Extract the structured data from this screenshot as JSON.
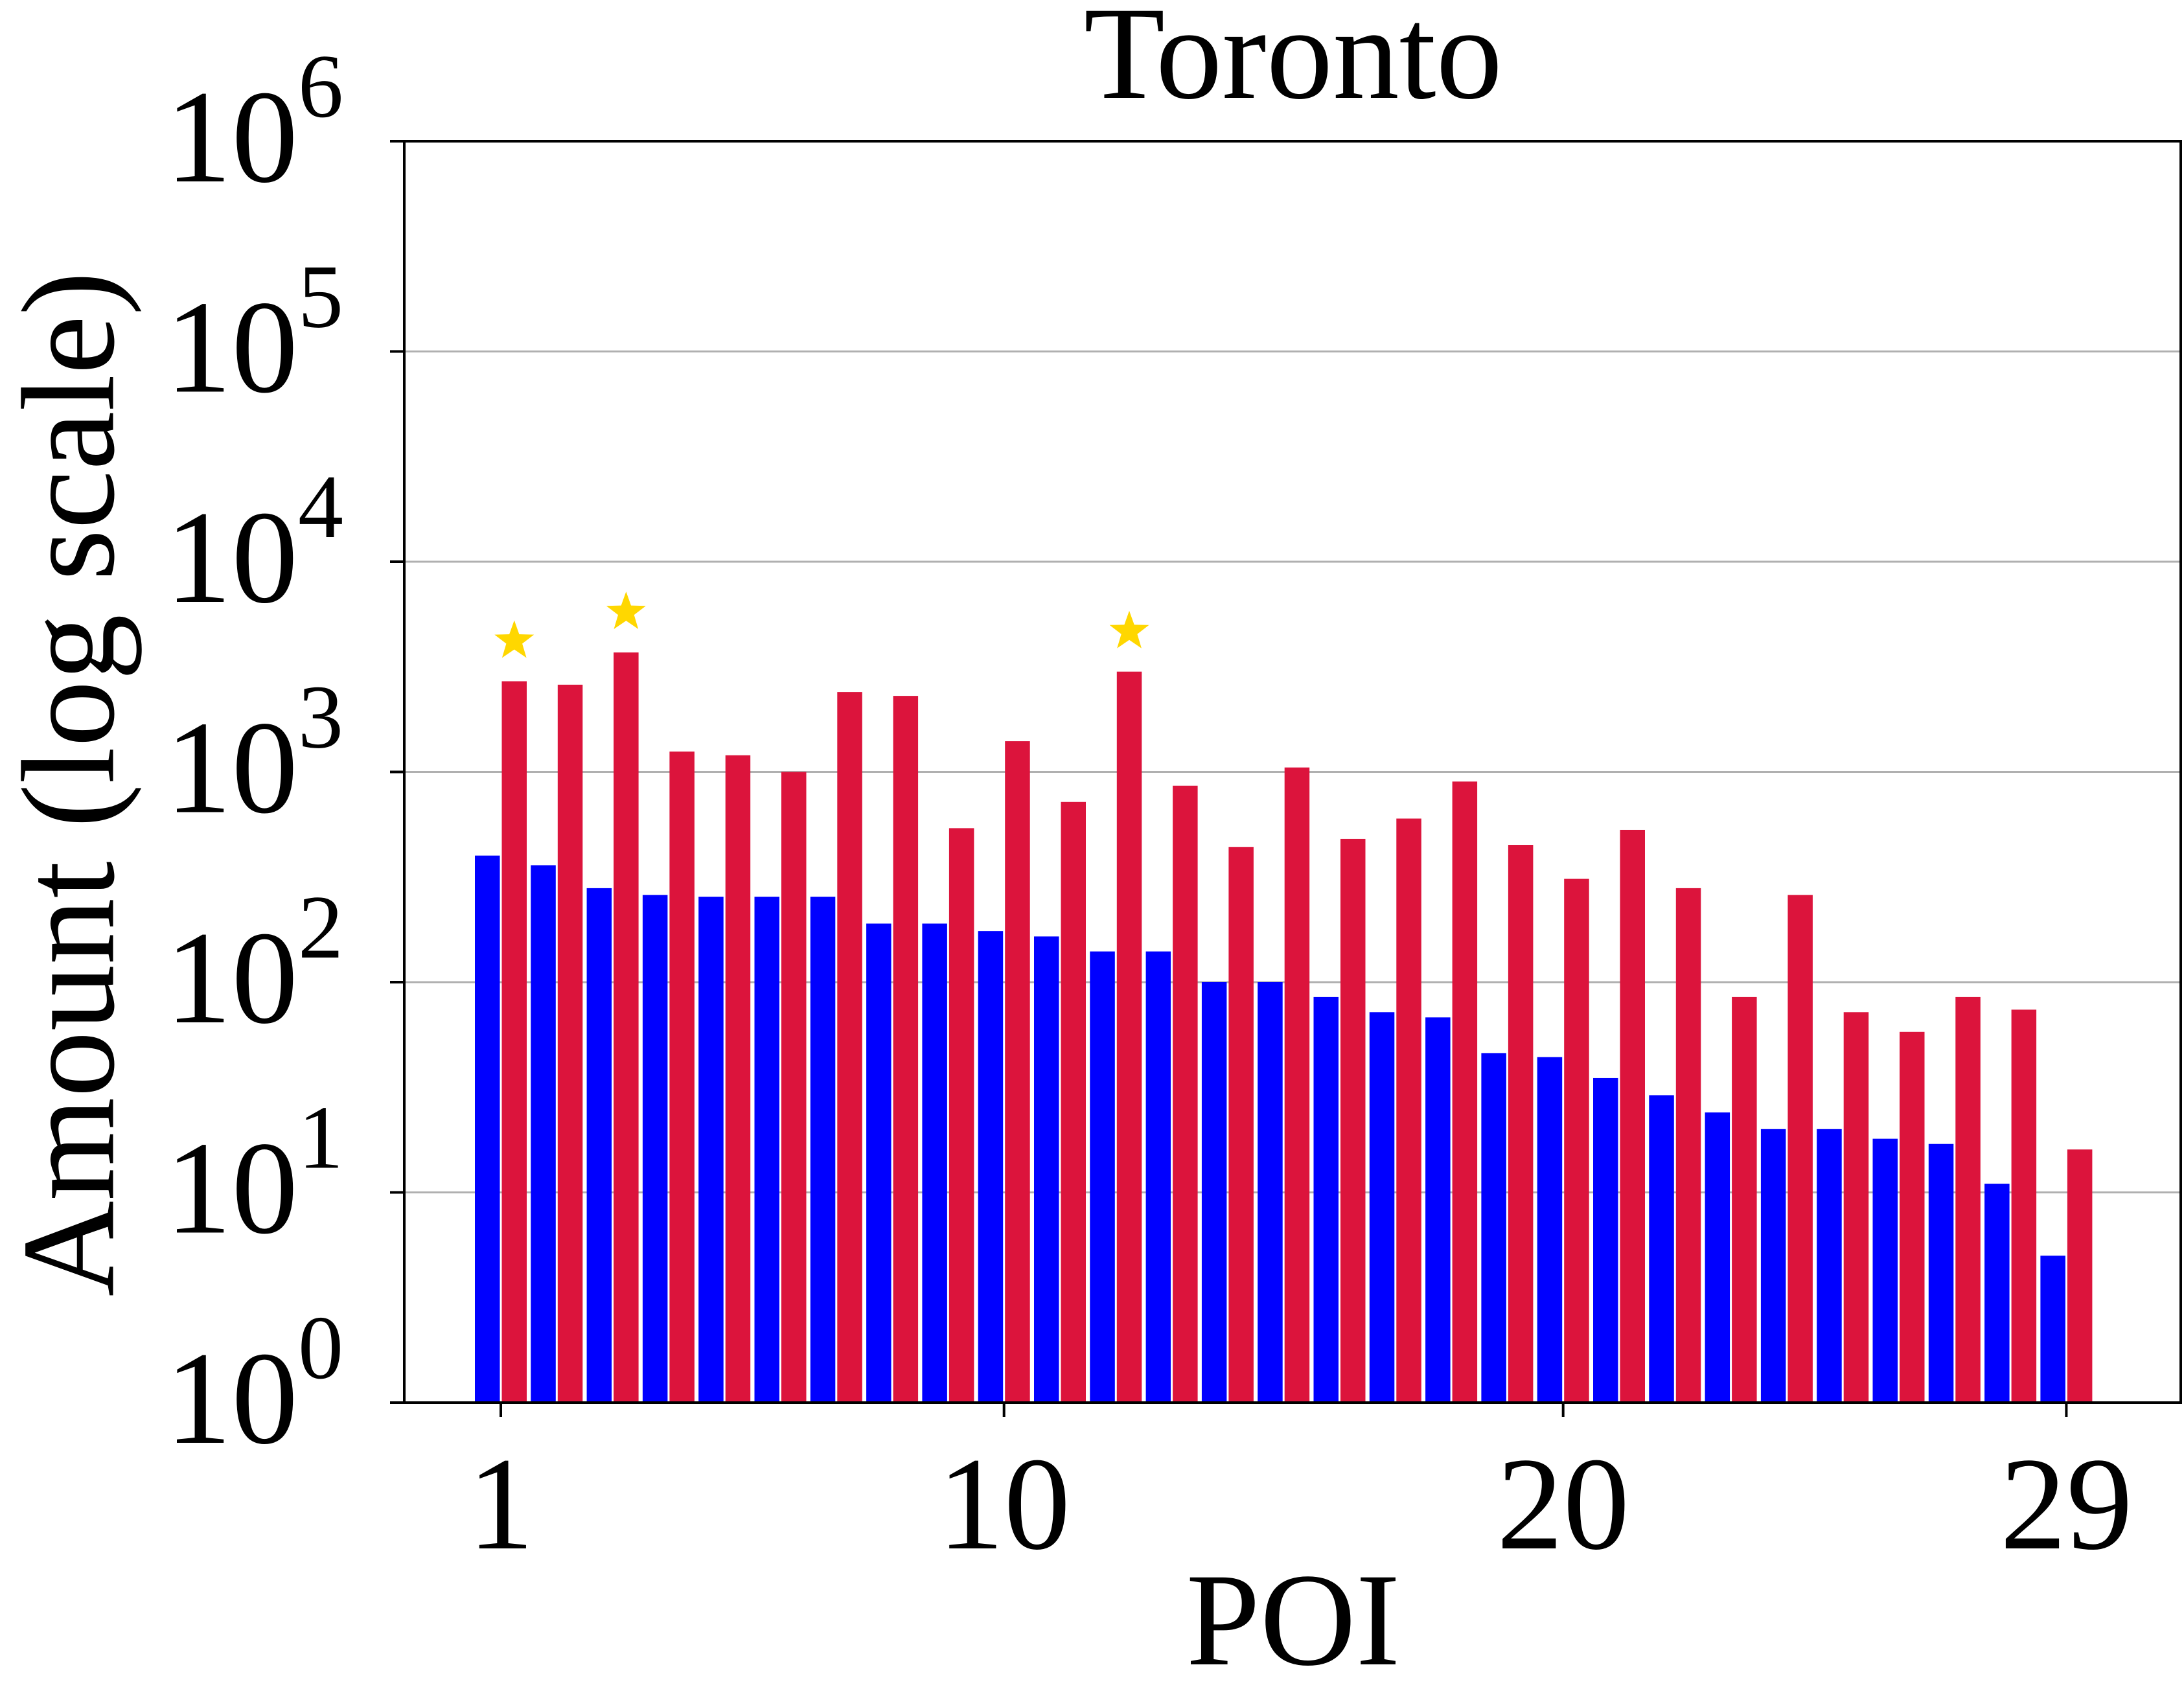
{
  "chart_data": {
    "type": "bar",
    "title": "Toronto",
    "xlabel": "POI",
    "ylabel": "Amount (log scale)",
    "yscale": "log",
    "ylim": [
      1,
      1000000
    ],
    "xticks": [
      "1",
      "10",
      "20",
      "29"
    ],
    "ytick_mantissa": "10",
    "ytick_exponents": [
      "0",
      "1",
      "2",
      "3",
      "4",
      "5",
      "6"
    ],
    "grid": "horizontal",
    "colors": {
      "series1": "#0000ff",
      "series2": "#dc143c",
      "star": "#ffd700",
      "grid": "#b0b0b0"
    },
    "categories": [
      1,
      2,
      3,
      4,
      5,
      6,
      7,
      8,
      9,
      10,
      11,
      12,
      13,
      14,
      15,
      16,
      17,
      18,
      19,
      20,
      21,
      22,
      23,
      24,
      25,
      26,
      27,
      28,
      29
    ],
    "series": [
      {
        "values": [
          400,
          360,
          280,
          260,
          255,
          255,
          255,
          190,
          190,
          175,
          165,
          140,
          140,
          100,
          100,
          85,
          72,
          68,
          46,
          44,
          35,
          29,
          24,
          20,
          20,
          18,
          17,
          11,
          5
        ]
      },
      {
        "values": [
          2700,
          2600,
          3700,
          1250,
          1200,
          1000,
          2400,
          2300,
          540,
          1400,
          720,
          3000,
          860,
          440,
          1050,
          480,
          600,
          900,
          450,
          310,
          530,
          280,
          85,
          260,
          72,
          58,
          85,
          74,
          16
        ]
      }
    ],
    "star_categories": [
      1,
      3,
      12
    ]
  }
}
